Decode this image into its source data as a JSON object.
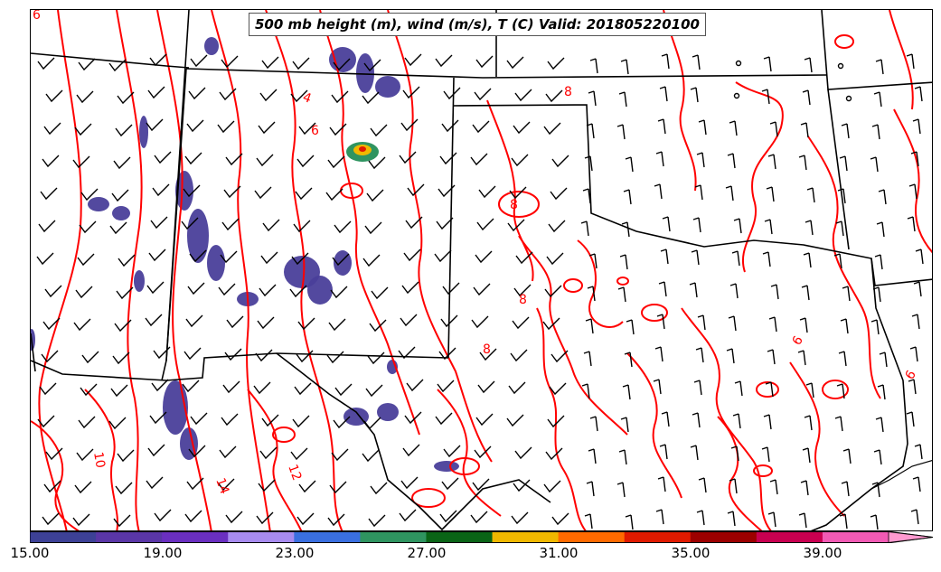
{
  "title": "500 mb height (m), wind (m/s), T (C) Valid: 201805220100",
  "colorbar": {
    "ticks": [
      "15.00",
      "19.00",
      "23.00",
      "27.00",
      "31.00",
      "35.00",
      "39.00"
    ],
    "colors": [
      "#3d4196",
      "#5a36a6",
      "#6a2fc0",
      "#a78bef",
      "#3a6fe0",
      "#2f9460",
      "#0a6416",
      "#f0b800",
      "#ff6a00",
      "#e01a00",
      "#9c0000",
      "#c80050",
      "#f25ab4",
      "#ff9ad0"
    ]
  },
  "contour_labels": [
    "4",
    "6",
    "8",
    "8",
    "8",
    "8",
    "6",
    "10",
    "12",
    "14",
    "6",
    "6"
  ],
  "colors": {
    "contour": "#ff0000",
    "shading": "#4a3f9a",
    "borders": "#000000"
  }
}
